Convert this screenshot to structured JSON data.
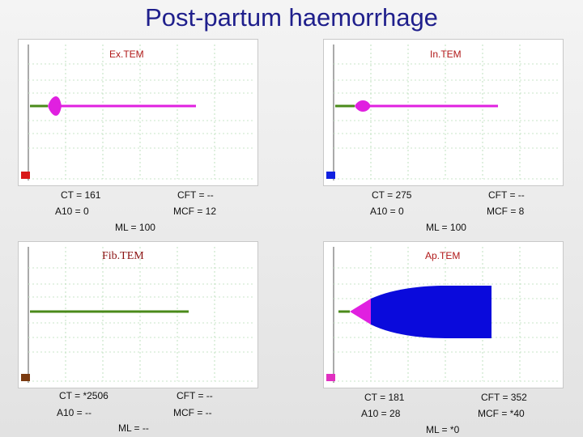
{
  "slide": {
    "title": "Post-partum haemorrhage"
  },
  "colors": {
    "title": "#1f1f8c",
    "panel_title": "#b01818",
    "green": "#4a8a1a",
    "magenta": "#e020e0",
    "blue": "#0a0adc"
  },
  "panels": {
    "extem": {
      "title": "Ex.TEM",
      "marker_color": "#d81818",
      "ct": "CT = 161",
      "cft": "CFT = --",
      "a10": "A10 = 0",
      "mcf": "MCF = 12",
      "ml": "ML = 100"
    },
    "intem": {
      "title": "In.TEM",
      "marker_color": "#1020e0",
      "ct": "CT = 275",
      "cft": "CFT = --",
      "a10": "A10 = 0",
      "mcf": "MCF = 8",
      "ml": "ML = 100"
    },
    "fibtem": {
      "title": "Fib.TEM",
      "marker_color": "#7a3a10",
      "ct": "CT = *2506",
      "cft": "CFT = --",
      "a10": "A10 = --",
      "mcf": "MCF = --",
      "ml": "ML = --"
    },
    "aptem": {
      "title": "Ap.TEM",
      "marker_color": "#e030c0",
      "ct": "CT = 181",
      "cft": "CFT = 352",
      "a10": "A10 = 28",
      "mcf": "MCF = *40",
      "ml": "ML = *0"
    }
  }
}
